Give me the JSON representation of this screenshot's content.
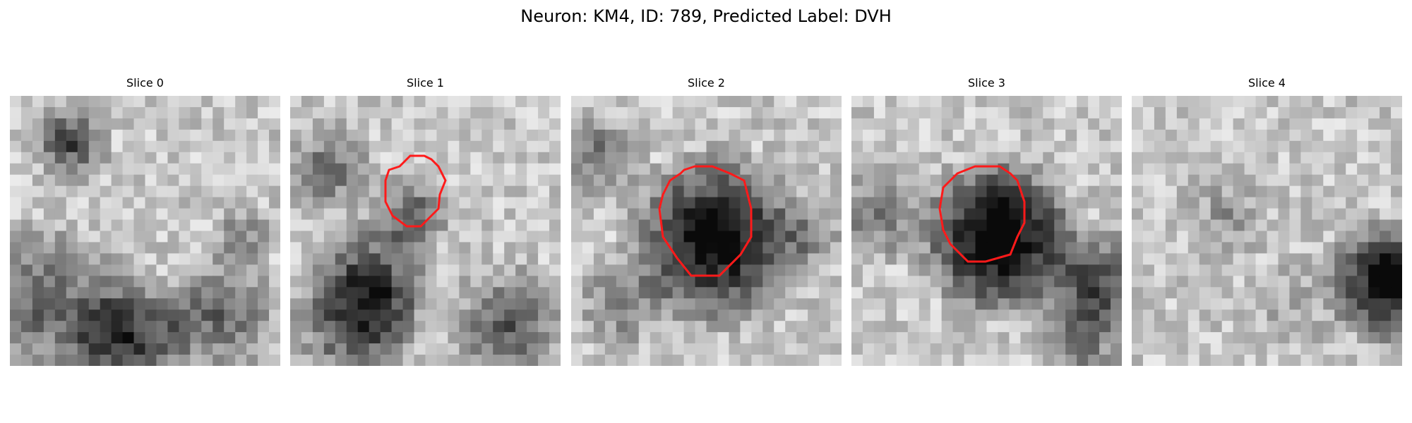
{
  "figure": {
    "title": "Neuron: KM4, ID: 789, Predicted Label: DVH",
    "colormap": "grayscale",
    "outline_color": "#ff1a1a"
  },
  "slices": [
    {
      "title": "Slice 0",
      "has_outline": false
    },
    {
      "title": "Slice 1",
      "has_outline": true
    },
    {
      "title": "Slice 2",
      "has_outline": true
    },
    {
      "title": "Slice 3",
      "has_outline": true
    },
    {
      "title": "Slice 4",
      "has_outline": false
    }
  ]
}
